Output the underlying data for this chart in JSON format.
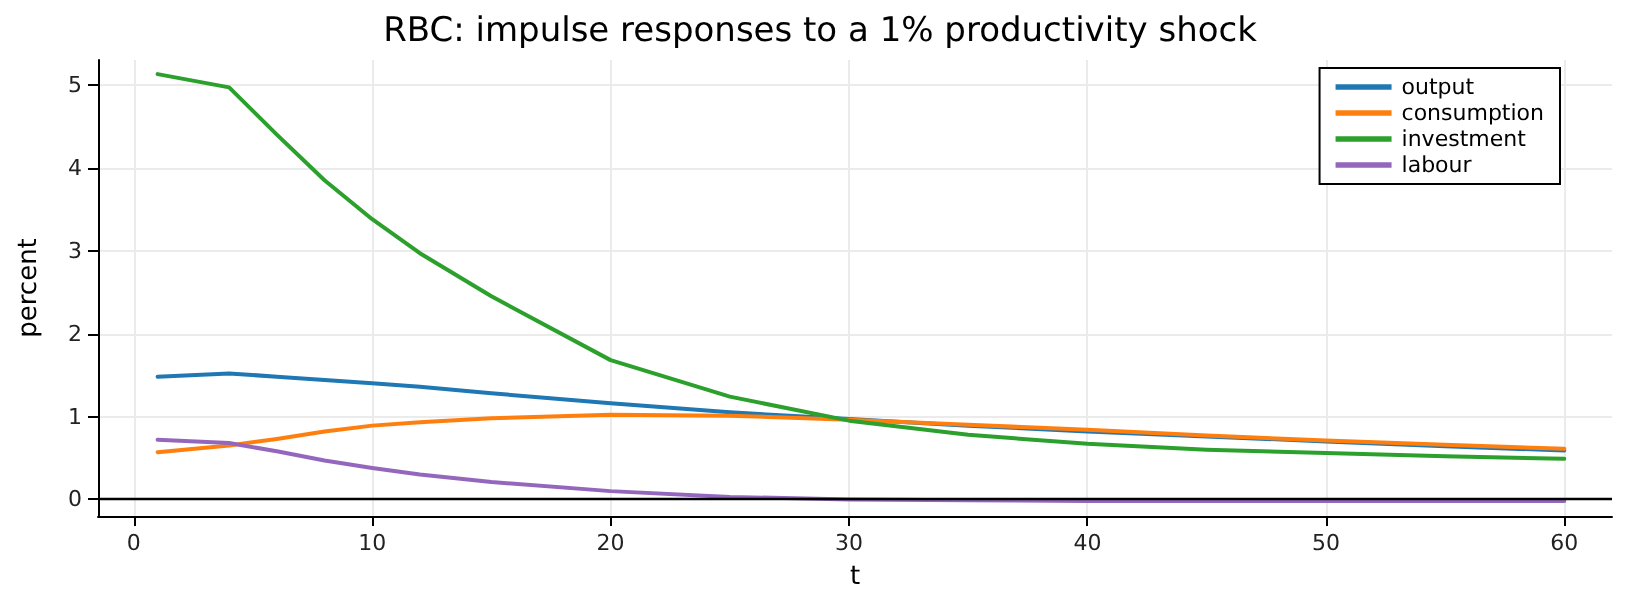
{
  "chart_data": {
    "type": "line",
    "title": "RBC: impulse responses to a 1% productivity shock",
    "xlabel": "t",
    "ylabel": "percent",
    "x": [
      1,
      4,
      6,
      8,
      10,
      12,
      15,
      20,
      25,
      30,
      35,
      40,
      45,
      50,
      55,
      60
    ],
    "series": [
      {
        "name": "output",
        "color": "#1f77b4",
        "values": [
          1.48,
          1.52,
          1.48,
          1.44,
          1.4,
          1.36,
          1.28,
          1.16,
          1.05,
          0.97,
          0.89,
          0.82,
          0.76,
          0.7,
          0.64,
          0.59
        ]
      },
      {
        "name": "consumption",
        "color": "#ff7f0e",
        "values": [
          0.57,
          0.65,
          0.73,
          0.82,
          0.89,
          0.93,
          0.98,
          1.02,
          1.01,
          0.96,
          0.9,
          0.84,
          0.77,
          0.71,
          0.66,
          0.61
        ]
      },
      {
        "name": "investment",
        "color": "#2ca02c",
        "values": [
          5.13,
          4.97,
          4.4,
          3.85,
          3.38,
          2.97,
          2.45,
          1.68,
          1.24,
          0.95,
          0.78,
          0.67,
          0.6,
          0.56,
          0.52,
          0.49
        ]
      },
      {
        "name": "labour",
        "color": "#9467bd",
        "values": [
          0.72,
          0.68,
          0.58,
          0.47,
          0.38,
          0.3,
          0.21,
          0.1,
          0.03,
          0.0,
          -0.01,
          -0.02,
          -0.02,
          -0.02,
          -0.02,
          -0.02
        ]
      }
    ],
    "xlim": [
      -1.5,
      62
    ],
    "ylim": [
      -0.2,
      5.3
    ],
    "xticks": [
      0,
      10,
      20,
      30,
      40,
      50,
      60
    ],
    "yticks": [
      0,
      1,
      2,
      3,
      4,
      5
    ],
    "ref_lines": [
      {
        "axis": "y",
        "value": 0,
        "color": "#000000"
      }
    ],
    "grid": true,
    "legend": "top right",
    "marker": "none",
    "line_style": "solid"
  }
}
